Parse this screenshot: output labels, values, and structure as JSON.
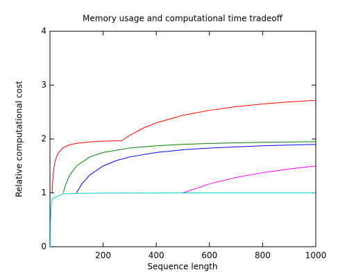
{
  "chart_data": {
    "type": "line",
    "title": "Memory usage and computational time tradeoff",
    "x_label": "Sequence length",
    "y_label": "Relative computational cost",
    "xlim": [
      0,
      1000
    ],
    "ylim": [
      0,
      4
    ],
    "xticks": [
      200,
      400,
      600,
      800,
      1000
    ],
    "yticks": [
      0,
      1,
      2,
      3,
      4
    ],
    "series": [
      {
        "color": "#ff0000",
        "x": [
          8,
          10,
          12,
          15,
          20,
          30,
          50,
          75,
          100,
          150,
          200,
          270,
          280,
          300,
          350,
          400,
          500,
          600,
          700,
          800,
          900,
          1000
        ],
        "values": [
          1,
          1.2,
          1.333,
          1.467,
          1.6,
          1.733,
          1.84,
          1.893,
          1.92,
          1.947,
          1.96,
          1.97,
          2.0,
          2.067,
          2.2,
          2.3,
          2.44,
          2.533,
          2.6,
          2.65,
          2.689,
          2.72
        ]
      },
      {
        "color": "#008000",
        "x": [
          50,
          60,
          75,
          100,
          150,
          200,
          300,
          400,
          500,
          600,
          800,
          1000
        ],
        "values": [
          1,
          1.167,
          1.333,
          1.5,
          1.667,
          1.75,
          1.833,
          1.875,
          1.9,
          1.917,
          1.938,
          1.95
        ]
      },
      {
        "color": "#0000ff",
        "x": [
          100,
          120,
          150,
          200,
          250,
          300,
          400,
          500,
          600,
          800,
          1000
        ],
        "values": [
          1,
          1.167,
          1.333,
          1.5,
          1.6,
          1.667,
          1.75,
          1.8,
          1.833,
          1.875,
          1.9
        ]
      },
      {
        "color": "#ff00ff",
        "x": [
          500,
          600,
          700,
          800,
          900,
          1000
        ],
        "values": [
          1,
          1.167,
          1.286,
          1.375,
          1.444,
          1.5
        ]
      },
      {
        "color": "#00cccc",
        "x": [
          1,
          2,
          5,
          10,
          50,
          100,
          200,
          400,
          600,
          800,
          1000
        ],
        "values": [
          0,
          0.5,
          0.8,
          0.9,
          0.98,
          0.99,
          0.995,
          0.9975,
          0.998,
          0.999,
          0.999
        ]
      }
    ]
  }
}
